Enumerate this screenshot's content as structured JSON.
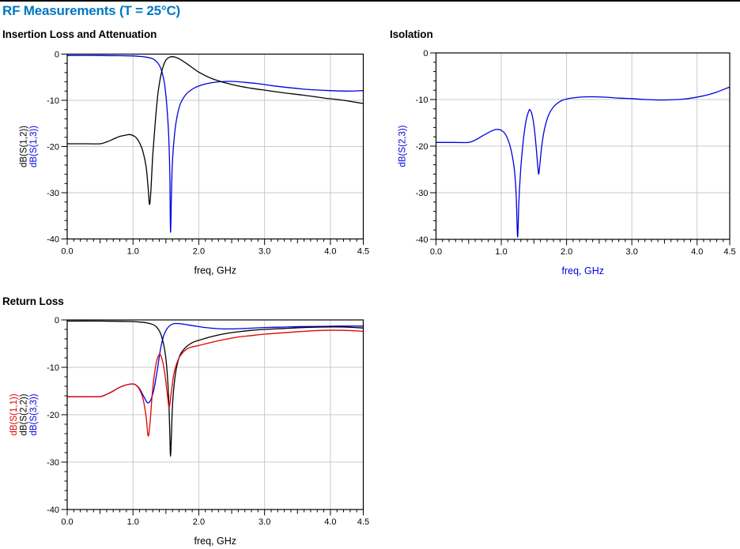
{
  "header": {
    "title": "RF Measurements (T = 25°C)",
    "accent_color": "#0077C2"
  },
  "chart_data": [
    {
      "id": "insertion-loss",
      "type": "line",
      "title": "Insertion Loss and Attenuation",
      "xlabel": "freq, GHz",
      "xlabel_color": "#000000",
      "ylabels": [
        {
          "text": "dB(S(1,2))",
          "color": "#000000"
        },
        {
          "text": "dB(S(1,3))",
          "color": "#0000E0"
        }
      ],
      "xlim": [
        0,
        4.5
      ],
      "ylim": [
        -40,
        0
      ],
      "xticks": [
        0,
        1,
        2,
        3,
        4,
        4.5
      ],
      "xtick_labels": [
        "0.0",
        "1.0",
        "2.0",
        "3.0",
        "4.0",
        "4.5"
      ],
      "yticks": [
        0,
        -10,
        -20,
        -30,
        -40
      ],
      "ytick_labels": [
        "0",
        "-10",
        "-20",
        "-30",
        "-40"
      ],
      "grid": true,
      "legend_position": "none",
      "series": [
        {
          "name": "dB(S(1,2))",
          "color": "#000000",
          "points": [
            [
              0,
              -19.4
            ],
            [
              0.3,
              -19.4
            ],
            [
              0.5,
              -19.4
            ],
            [
              0.6,
              -19.0
            ],
            [
              0.7,
              -18.4
            ],
            [
              0.8,
              -17.8
            ],
            [
              0.9,
              -17.5
            ],
            [
              0.95,
              -17.4
            ],
            [
              1.0,
              -17.6
            ],
            [
              1.05,
              -18.1
            ],
            [
              1.1,
              -19.2
            ],
            [
              1.15,
              -21.0
            ],
            [
              1.2,
              -24.5
            ],
            [
              1.23,
              -29.0
            ],
            [
              1.25,
              -32.5
            ],
            [
              1.27,
              -30.0
            ],
            [
              1.3,
              -22.0
            ],
            [
              1.34,
              -14.5
            ],
            [
              1.38,
              -8.5
            ],
            [
              1.42,
              -4.8
            ],
            [
              1.46,
              -2.6
            ],
            [
              1.5,
              -1.3
            ],
            [
              1.55,
              -0.7
            ],
            [
              1.6,
              -0.55
            ],
            [
              1.65,
              -0.7
            ],
            [
              1.7,
              -1.0
            ],
            [
              1.8,
              -1.9
            ],
            [
              1.9,
              -2.9
            ],
            [
              2.0,
              -3.9
            ],
            [
              2.2,
              -5.3
            ],
            [
              2.4,
              -6.2
            ],
            [
              2.6,
              -6.9
            ],
            [
              2.8,
              -7.4
            ],
            [
              3.0,
              -7.8
            ],
            [
              3.3,
              -8.4
            ],
            [
              3.6,
              -8.9
            ],
            [
              3.9,
              -9.5
            ],
            [
              4.2,
              -10.0
            ],
            [
              4.5,
              -10.7
            ]
          ]
        },
        {
          "name": "dB(S(1,3))",
          "color": "#0000E0",
          "points": [
            [
              0,
              -0.3
            ],
            [
              0.5,
              -0.3
            ],
            [
              0.8,
              -0.35
            ],
            [
              1.0,
              -0.4
            ],
            [
              1.1,
              -0.5
            ],
            [
              1.2,
              -0.65
            ],
            [
              1.3,
              -1.0
            ],
            [
              1.35,
              -1.5
            ],
            [
              1.4,
              -2.4
            ],
            [
              1.44,
              -3.8
            ],
            [
              1.48,
              -6.5
            ],
            [
              1.51,
              -10.5
            ],
            [
              1.54,
              -17.0
            ],
            [
              1.56,
              -26.0
            ],
            [
              1.57,
              -38.5
            ],
            [
              1.585,
              -30.0
            ],
            [
              1.6,
              -23.0
            ],
            [
              1.63,
              -17.5
            ],
            [
              1.67,
              -13.5
            ],
            [
              1.72,
              -10.8
            ],
            [
              1.8,
              -8.8
            ],
            [
              1.9,
              -7.6
            ],
            [
              2.0,
              -6.9
            ],
            [
              2.15,
              -6.3
            ],
            [
              2.3,
              -6.0
            ],
            [
              2.5,
              -5.9
            ],
            [
              2.7,
              -6.1
            ],
            [
              2.9,
              -6.4
            ],
            [
              3.1,
              -6.8
            ],
            [
              3.4,
              -7.3
            ],
            [
              3.7,
              -7.7
            ],
            [
              4.0,
              -7.9
            ],
            [
              4.25,
              -8.0
            ],
            [
              4.5,
              -7.9
            ]
          ]
        }
      ]
    },
    {
      "id": "isolation",
      "type": "line",
      "title": "Isolation",
      "xlabel": "freq, GHz",
      "xlabel_color": "#0000E0",
      "ylabels": [
        {
          "text": "dB(S(2,3))",
          "color": "#0000E0"
        }
      ],
      "xlim": [
        0,
        4.5
      ],
      "ylim": [
        -40,
        0
      ],
      "xticks": [
        0,
        1,
        2,
        3,
        4,
        4.5
      ],
      "xtick_labels": [
        "0.0",
        "1.0",
        "2.0",
        "3.0",
        "4.0",
        "4.5"
      ],
      "yticks": [
        0,
        -10,
        -20,
        -30,
        -40
      ],
      "ytick_labels": [
        "0",
        "-10",
        "-20",
        "-30",
        "-40"
      ],
      "grid": true,
      "legend_position": "none",
      "series": [
        {
          "name": "dB(S(2,3))",
          "color": "#0000E0",
          "points": [
            [
              0,
              -19.2
            ],
            [
              0.3,
              -19.2
            ],
            [
              0.5,
              -19.2
            ],
            [
              0.6,
              -18.7
            ],
            [
              0.7,
              -17.9
            ],
            [
              0.8,
              -17.1
            ],
            [
              0.9,
              -16.5
            ],
            [
              0.95,
              -16.4
            ],
            [
              1.0,
              -16.6
            ],
            [
              1.05,
              -17.2
            ],
            [
              1.1,
              -18.5
            ],
            [
              1.15,
              -20.8
            ],
            [
              1.2,
              -25.0
            ],
            [
              1.23,
              -31.0
            ],
            [
              1.25,
              -39.5
            ],
            [
              1.27,
              -32.0
            ],
            [
              1.3,
              -24.5
            ],
            [
              1.34,
              -18.5
            ],
            [
              1.38,
              -14.5
            ],
            [
              1.42,
              -12.5
            ],
            [
              1.44,
              -12.2
            ],
            [
              1.47,
              -13.2
            ],
            [
              1.5,
              -15.5
            ],
            [
              1.53,
              -19.5
            ],
            [
              1.56,
              -24.5
            ],
            [
              1.575,
              -26.0
            ],
            [
              1.59,
              -24.0
            ],
            [
              1.62,
              -20.0
            ],
            [
              1.66,
              -16.5
            ],
            [
              1.72,
              -13.5
            ],
            [
              1.8,
              -11.6
            ],
            [
              1.9,
              -10.4
            ],
            [
              2.0,
              -9.9
            ],
            [
              2.2,
              -9.5
            ],
            [
              2.4,
              -9.4
            ],
            [
              2.6,
              -9.5
            ],
            [
              2.8,
              -9.7
            ],
            [
              3.0,
              -9.8
            ],
            [
              3.2,
              -10.0
            ],
            [
              3.5,
              -10.1
            ],
            [
              3.8,
              -9.9
            ],
            [
              4.1,
              -9.2
            ],
            [
              4.3,
              -8.4
            ],
            [
              4.5,
              -7.3
            ]
          ]
        }
      ]
    },
    {
      "id": "return-loss",
      "type": "line",
      "title": "Return Loss",
      "xlabel": "freq, GHz",
      "xlabel_color": "#000000",
      "ylabels": [
        {
          "text": "dB(S(1,1))",
          "color": "#E00000"
        },
        {
          "text": "dB(S(2,2))",
          "color": "#000000"
        },
        {
          "text": "dB(S(3,3))",
          "color": "#0000E0"
        }
      ],
      "xlim": [
        0,
        4.5
      ],
      "ylim": [
        -40,
        0
      ],
      "xticks": [
        0,
        1,
        2,
        3,
        4,
        4.5
      ],
      "xtick_labels": [
        "0.0",
        "1.0",
        "2.0",
        "3.0",
        "4.0",
        "4.5"
      ],
      "yticks": [
        0,
        -10,
        -20,
        -30,
        -40
      ],
      "ytick_labels": [
        "0",
        "-10",
        "-20",
        "-30",
        "-40"
      ],
      "grid": true,
      "legend_position": "none",
      "series": [
        {
          "name": "dB(S(1,1))",
          "color": "#E00000",
          "points": [
            [
              0,
              -16.2
            ],
            [
              0.3,
              -16.2
            ],
            [
              0.5,
              -16.2
            ],
            [
              0.6,
              -15.7
            ],
            [
              0.7,
              -15.0
            ],
            [
              0.8,
              -14.2
            ],
            [
              0.9,
              -13.7
            ],
            [
              1.0,
              -13.5
            ],
            [
              1.05,
              -13.8
            ],
            [
              1.1,
              -14.7
            ],
            [
              1.15,
              -16.5
            ],
            [
              1.2,
              -20.5
            ],
            [
              1.23,
              -24.5
            ],
            [
              1.26,
              -21.5
            ],
            [
              1.3,
              -14.5
            ],
            [
              1.35,
              -9.3
            ],
            [
              1.4,
              -7.3
            ],
            [
              1.44,
              -8.2
            ],
            [
              1.48,
              -11.0
            ],
            [
              1.52,
              -15.5
            ],
            [
              1.55,
              -18.4
            ],
            [
              1.58,
              -15.5
            ],
            [
              1.62,
              -11.5
            ],
            [
              1.68,
              -8.6
            ],
            [
              1.75,
              -7.0
            ],
            [
              1.85,
              -5.9
            ],
            [
              2.0,
              -5.4
            ],
            [
              2.2,
              -4.7
            ],
            [
              2.4,
              -4.1
            ],
            [
              2.6,
              -3.6
            ],
            [
              2.8,
              -3.3
            ],
            [
              3.0,
              -3.0
            ],
            [
              3.3,
              -2.7
            ],
            [
              3.6,
              -2.4
            ],
            [
              3.9,
              -2.2
            ],
            [
              4.2,
              -2.2
            ],
            [
              4.5,
              -2.4
            ]
          ]
        },
        {
          "name": "dB(S(2,2))",
          "color": "#000000",
          "points": [
            [
              0,
              -0.25
            ],
            [
              0.5,
              -0.25
            ],
            [
              0.8,
              -0.3
            ],
            [
              1.0,
              -0.35
            ],
            [
              1.1,
              -0.45
            ],
            [
              1.2,
              -0.6
            ],
            [
              1.3,
              -0.95
            ],
            [
              1.35,
              -1.4
            ],
            [
              1.4,
              -2.3
            ],
            [
              1.44,
              -3.7
            ],
            [
              1.48,
              -6.2
            ],
            [
              1.51,
              -9.5
            ],
            [
              1.54,
              -16.0
            ],
            [
              1.56,
              -24.0
            ],
            [
              1.57,
              -28.8
            ],
            [
              1.585,
              -24.0
            ],
            [
              1.6,
              -18.0
            ],
            [
              1.63,
              -13.0
            ],
            [
              1.67,
              -9.5
            ],
            [
              1.72,
              -7.3
            ],
            [
              1.8,
              -5.8
            ],
            [
              1.9,
              -4.8
            ],
            [
              2.0,
              -4.3
            ],
            [
              2.2,
              -3.5
            ],
            [
              2.4,
              -2.9
            ],
            [
              2.6,
              -2.5
            ],
            [
              2.8,
              -2.2
            ],
            [
              3.0,
              -2.0
            ],
            [
              3.3,
              -1.8
            ],
            [
              3.6,
              -1.6
            ],
            [
              3.9,
              -1.5
            ],
            [
              4.2,
              -1.5
            ],
            [
              4.5,
              -1.7
            ]
          ]
        },
        {
          "name": "dB(S(3,3))",
          "color": "#0000E0",
          "points": [
            [
              0,
              -16.2
            ],
            [
              0.3,
              -16.2
            ],
            [
              0.5,
              -16.2
            ],
            [
              0.6,
              -15.7
            ],
            [
              0.7,
              -15.0
            ],
            [
              0.8,
              -14.2
            ],
            [
              0.9,
              -13.7
            ],
            [
              1.0,
              -13.5
            ],
            [
              1.05,
              -13.8
            ],
            [
              1.1,
              -14.5
            ],
            [
              1.15,
              -15.8
            ],
            [
              1.2,
              -17.1
            ],
            [
              1.23,
              -17.5
            ],
            [
              1.27,
              -16.9
            ],
            [
              1.32,
              -14.5
            ],
            [
              1.37,
              -10.5
            ],
            [
              1.42,
              -6.0
            ],
            [
              1.47,
              -3.2
            ],
            [
              1.52,
              -1.8
            ],
            [
              1.58,
              -1.0
            ],
            [
              1.65,
              -0.75
            ],
            [
              1.75,
              -0.85
            ],
            [
              1.9,
              -1.2
            ],
            [
              2.1,
              -1.6
            ],
            [
              2.3,
              -1.85
            ],
            [
              2.5,
              -1.9
            ],
            [
              2.7,
              -1.8
            ],
            [
              3.0,
              -1.6
            ],
            [
              3.3,
              -1.5
            ],
            [
              3.6,
              -1.4
            ],
            [
              3.9,
              -1.35
            ],
            [
              4.2,
              -1.3
            ],
            [
              4.5,
              -1.3
            ]
          ]
        }
      ]
    }
  ]
}
